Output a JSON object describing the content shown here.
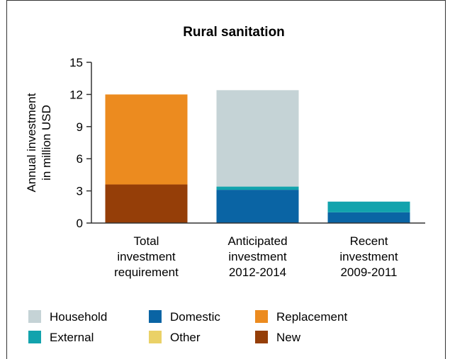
{
  "chart_data": {
    "type": "bar",
    "stacked": true,
    "title": "Rural sanitation",
    "ylabel_lines": [
      "Annual investment",
      "in million USD"
    ],
    "ylim": [
      0,
      15
    ],
    "yticks": [
      0,
      3,
      6,
      9,
      12,
      15
    ],
    "categories": [
      [
        "Total",
        "investment",
        "requirement"
      ],
      [
        "Anticipated",
        "investment",
        "2012-2014"
      ],
      [
        "Recent",
        "investment",
        "2009-2011"
      ]
    ],
    "series": [
      {
        "name": "New",
        "color": "#953e08",
        "values": [
          3.6,
          0,
          0
        ]
      },
      {
        "name": "Replacement",
        "color": "#ec8b1f",
        "values": [
          8.4,
          0,
          0
        ]
      },
      {
        "name": "Domestic",
        "color": "#0a64a4",
        "values": [
          0,
          3.1,
          1.0
        ]
      },
      {
        "name": "External",
        "color": "#12a3ad",
        "values": [
          0,
          0.3,
          1.0
        ]
      },
      {
        "name": "Other",
        "color": "#ead167",
        "values": [
          0,
          0,
          0
        ]
      },
      {
        "name": "Household",
        "color": "#c5d3d6",
        "values": [
          0,
          9.0,
          0
        ]
      }
    ],
    "legend_order": [
      [
        "Household",
        "Domestic",
        "Replacement"
      ],
      [
        "External",
        "Other",
        "New"
      ]
    ],
    "legend_position": "bottom"
  }
}
